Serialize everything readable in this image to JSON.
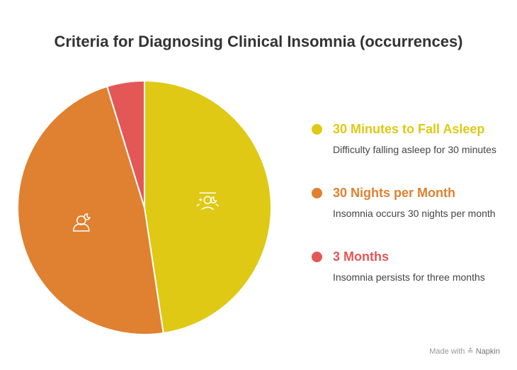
{
  "chart_data": {
    "type": "pie",
    "title": "Criteria for Diagnosing Clinical Insomnia (occurrences)",
    "slices": [
      {
        "label": "30 Minutes to Fall Asleep",
        "description": "Difficulty falling asleep for 30 minutes",
        "value": 30,
        "color": "#dfc914",
        "icon": "sleepless-night-icon"
      },
      {
        "label": "30 Nights per Month",
        "description": "Insomnia occurs 30 nights per month",
        "value": 30,
        "color": "#df8130",
        "icon": "person-sleeping-icon"
      },
      {
        "label": "3 Months",
        "description": "Insomnia persists for three months",
        "value": 3,
        "color": "#e45757",
        "icon": ""
      }
    ]
  },
  "footer": {
    "prefix": "Made with",
    "brand": "Napkin"
  },
  "colors": {
    "title": "#333333",
    "desc": "#444444",
    "slice_border": "#ffffff"
  }
}
